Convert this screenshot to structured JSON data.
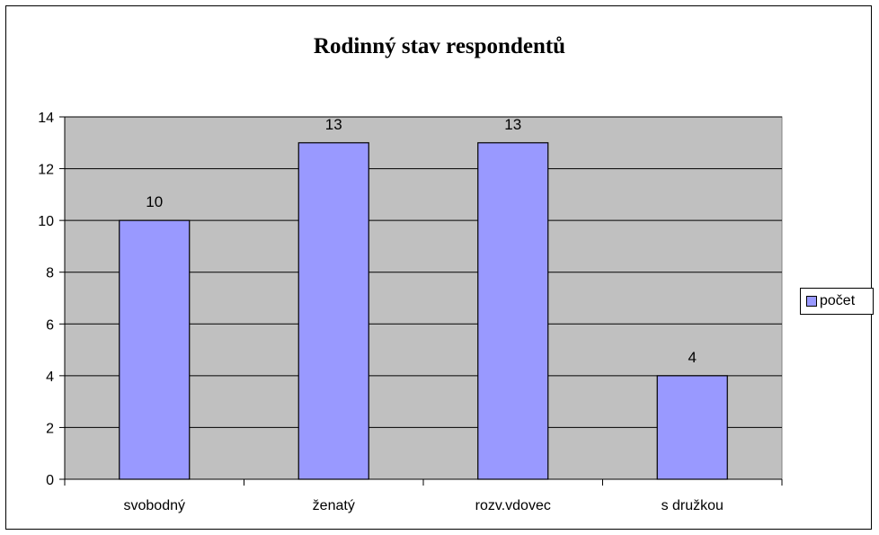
{
  "chart_data": {
    "type": "bar",
    "title": "Rodinný stav respondentů",
    "categories": [
      "svobodný",
      "ženatý",
      "rozv.vdovec",
      "s družkou"
    ],
    "series": [
      {
        "name": "počet",
        "values": [
          10,
          13,
          13,
          4
        ],
        "color": "#9999ff"
      }
    ],
    "data_labels": [
      "10",
      "13",
      "13",
      "4"
    ],
    "ylim": [
      0,
      14
    ],
    "yticks": [
      0,
      2,
      4,
      6,
      8,
      10,
      12,
      14
    ],
    "ytick_labels": [
      "0",
      "2",
      "4",
      "6",
      "8",
      "10",
      "12",
      "14"
    ],
    "grid": true,
    "plot_background": "#c0c0c0",
    "legend_position": "right"
  }
}
